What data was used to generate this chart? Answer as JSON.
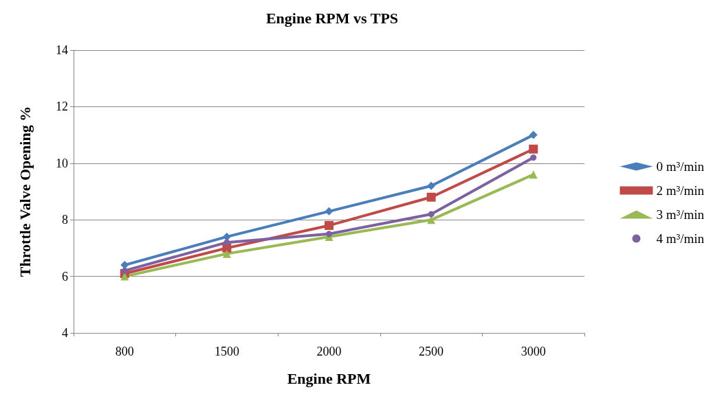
{
  "chart_data": {
    "type": "line",
    "title": "Engine RPM vs TPS",
    "xlabel": "Engine RPM",
    "ylabel": "Throttle Valve Opening %",
    "categories": [
      "800",
      "1500",
      "2000",
      "2500",
      "3000"
    ],
    "ylim": [
      4,
      14
    ],
    "yticks": [
      4,
      6,
      8,
      10,
      12,
      14
    ],
    "grid": "y",
    "legend": "right",
    "series": [
      {
        "name": "0 m³/min",
        "color": "#4a7ebb",
        "marker": "diamond",
        "values": [
          6.4,
          7.4,
          8.3,
          9.2,
          11.0
        ]
      },
      {
        "name": "2 m³/min",
        "color": "#be4b48",
        "marker": "square",
        "values": [
          6.1,
          7.0,
          7.8,
          8.8,
          10.5
        ]
      },
      {
        "name": "3 m³/min",
        "color": "#98b954",
        "marker": "triangle",
        "values": [
          6.0,
          6.8,
          7.4,
          8.0,
          9.6
        ]
      },
      {
        "name": "4 m³/min",
        "color": "#7d60a0",
        "marker": "circle",
        "values": [
          6.2,
          7.2,
          7.5,
          8.2,
          10.2
        ]
      }
    ]
  }
}
